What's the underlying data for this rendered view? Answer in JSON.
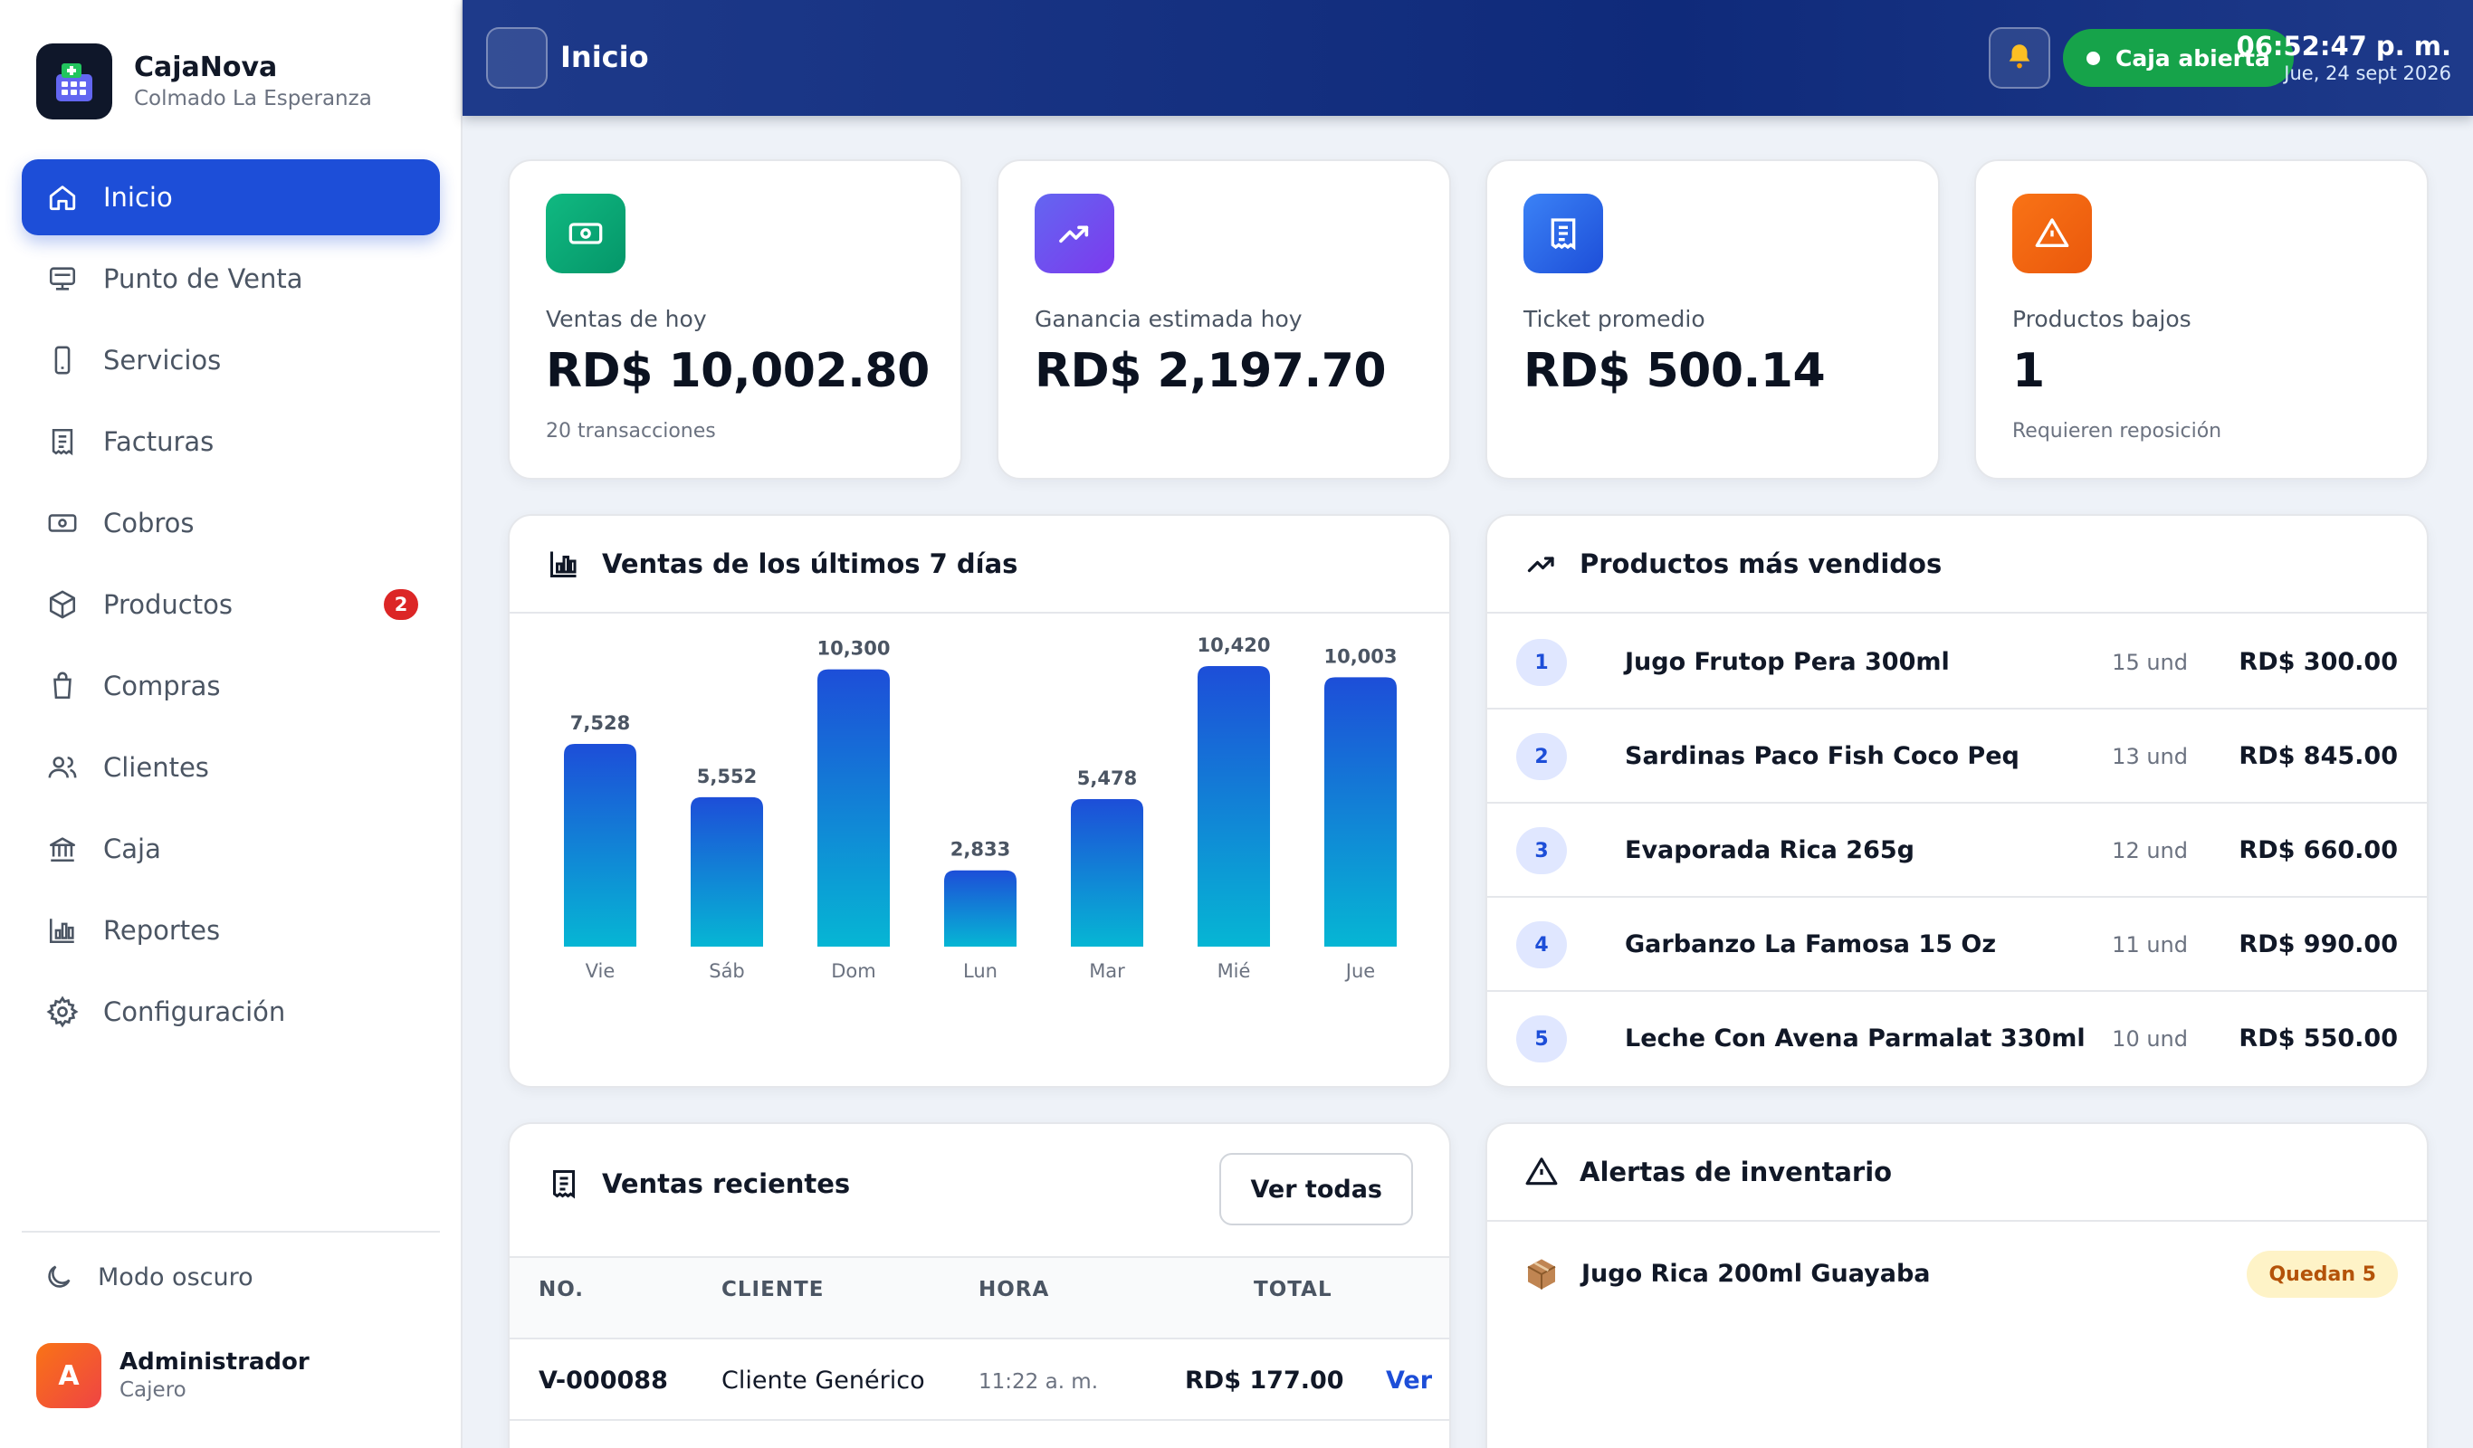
{
  "app": {
    "name": "CajaNova",
    "subtitle": "Colmado La Esperanza"
  },
  "sidebar": {
    "items": [
      {
        "label": "Inicio",
        "icon": "home-icon",
        "active": true
      },
      {
        "label": "Punto de Venta",
        "icon": "pos-icon"
      },
      {
        "label": "Servicios",
        "icon": "phone-icon"
      },
      {
        "label": "Facturas",
        "icon": "receipt-icon"
      },
      {
        "label": "Cobros",
        "icon": "cash-icon"
      },
      {
        "label": "Productos",
        "icon": "box-icon",
        "badge": "2"
      },
      {
        "label": "Compras",
        "icon": "bag-icon"
      },
      {
        "label": "Clientes",
        "icon": "users-icon"
      },
      {
        "label": "Caja",
        "icon": "bank-icon"
      },
      {
        "label": "Reportes",
        "icon": "bar-chart-icon"
      },
      {
        "label": "Configuración",
        "icon": "gear-icon"
      }
    ],
    "dark_mode_label": "Modo oscuro",
    "user": {
      "initial": "A",
      "name": "Administrador",
      "role": "Cajero"
    }
  },
  "topbar": {
    "title": "Inicio",
    "status": "Caja abierta",
    "time": "06:52:47 p. m.",
    "date": "Jue, 24 sept 2026"
  },
  "stats": [
    {
      "label": "Ventas de hoy",
      "value": "RD$ 10,002.80",
      "sub": "20 transacciones",
      "icon": "cash-icon",
      "color": "#10b981"
    },
    {
      "label": "Ganancia estimada hoy",
      "value": "RD$ 2,197.70",
      "sub": "",
      "icon": "trending-up-icon",
      "color": "#6366f1"
    },
    {
      "label": "Ticket promedio",
      "value": "RD$ 500.14",
      "sub": "",
      "icon": "receipt-icon",
      "color": "#3b82f6"
    },
    {
      "label": "Productos bajos",
      "value": "1",
      "sub": "Requieren reposición",
      "icon": "warning-icon",
      "color": "#f97316"
    }
  ],
  "chart_title": "Ventas de los últimos 7 días",
  "chart_data": {
    "type": "bar",
    "categories": [
      "Vie",
      "Sáb",
      "Dom",
      "Lun",
      "Mar",
      "Mié",
      "Jue"
    ],
    "values": [
      7528,
      5552,
      10300,
      2833,
      5478,
      10420,
      10003
    ],
    "value_labels": [
      "7,528",
      "5,552",
      "10,300",
      "2,833",
      "5,478",
      "10,420",
      "10,003"
    ],
    "title": "Ventas de los últimos 7 días",
    "ylim": [
      0,
      10420
    ],
    "grid": false,
    "colors": {
      "top": "#1d4ed8",
      "bottom": "#06b6d4"
    }
  },
  "top_products": {
    "title": "Productos más vendidos",
    "rows": [
      {
        "rank": "1",
        "name": "Jugo Frutop Pera 300ml",
        "qty": "15 und",
        "amount": "RD$ 300.00"
      },
      {
        "rank": "2",
        "name": "Sardinas Paco Fish Coco Peq",
        "qty": "13 und",
        "amount": "RD$ 845.00"
      },
      {
        "rank": "3",
        "name": "Evaporada Rica 265g",
        "qty": "12 und",
        "amount": "RD$ 660.00"
      },
      {
        "rank": "4",
        "name": "Garbanzo La Famosa 15 Oz",
        "qty": "11 und",
        "amount": "RD$ 990.00"
      },
      {
        "rank": "5",
        "name": "Leche Con Avena Parmalat 330ml",
        "qty": "10 und",
        "amount": "RD$ 550.00"
      }
    ]
  },
  "recent_sales": {
    "title": "Ventas recientes",
    "view_all": "Ver todas",
    "headers": {
      "no": "NO.",
      "client": "CLIENTE",
      "time": "HORA",
      "total": "TOTAL"
    },
    "rows": [
      {
        "no": "V-000088",
        "client": "Cliente Genérico",
        "time": "11:22 a. m.",
        "total": "RD$ 177.00",
        "action": "Ver"
      }
    ]
  },
  "alerts": {
    "title": "Alertas de inventario",
    "rows": [
      {
        "name": "Jugo Rica 200ml Guayaba",
        "badge": "Quedan 5",
        "icon": "package-icon"
      }
    ]
  }
}
